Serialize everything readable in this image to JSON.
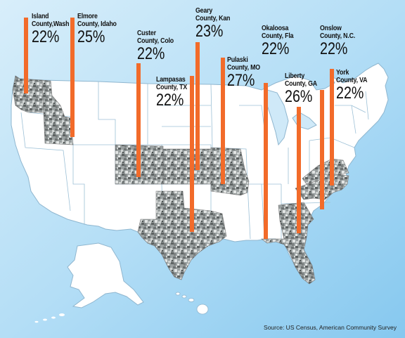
{
  "colors": {
    "ocean_light": "#cfe9f8",
    "ocean_dark": "#7cc3ee",
    "land": "#ffffff",
    "state_border": "#8fb6cf",
    "camo_dark": "#5e6363",
    "camo_mid": "#9aa0a0",
    "camo_light": "#cfd3d2",
    "bar": "#f26b2a"
  },
  "source": "Source: US Census, American Community Survey",
  "labels": [
    {
      "id": "island",
      "line1": "Island",
      "line2": "County,Wash",
      "pct": "22%"
    },
    {
      "id": "elmore",
      "line1": "Elmore",
      "line2": "County, Idaho",
      "pct": "25%"
    },
    {
      "id": "custer",
      "line1": "Custer",
      "line2": "County, Colo",
      "pct": "22%"
    },
    {
      "id": "geary",
      "line1": "Geary",
      "line2": "County, Kan",
      "pct": "23%"
    },
    {
      "id": "lampasas",
      "line1": "Lampasas",
      "line2": "County, TX",
      "pct": "22%"
    },
    {
      "id": "pulaski",
      "line1": "Pulaski",
      "line2": "County, MO",
      "pct": "27%"
    },
    {
      "id": "okaloosa",
      "line1": "Okaloosa",
      "line2": "County, Fla",
      "pct": "22%"
    },
    {
      "id": "liberty",
      "line1": "Liberty",
      "line2": "County, GA",
      "pct": "26%"
    },
    {
      "id": "onslow",
      "line1": "Onslow",
      "line2": "County, N.C.",
      "pct": "22%"
    },
    {
      "id": "york",
      "line1": "York",
      "line2": "County, VA",
      "pct": "22%"
    }
  ]
}
